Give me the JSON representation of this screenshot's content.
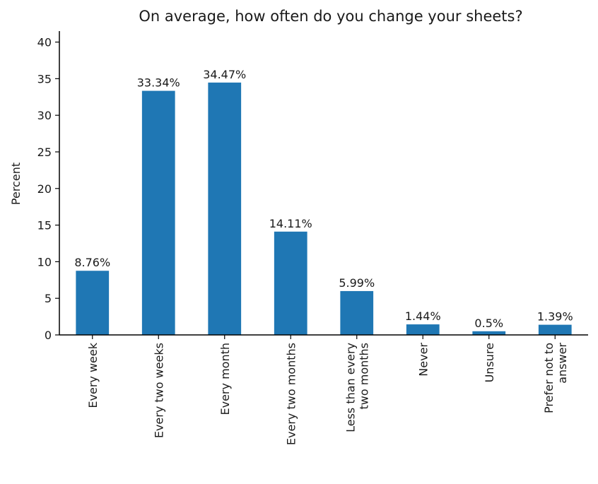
{
  "chart_data": {
    "type": "bar",
    "title": "On average, how often do you change your sheets?",
    "xlabel": "",
    "ylabel": "Percent",
    "ylim": [
      0,
      41.5
    ],
    "yticks": [
      0,
      5,
      10,
      15,
      20,
      25,
      30,
      35,
      40
    ],
    "grid": false,
    "categories": [
      [
        "Every week"
      ],
      [
        "Every two weeks"
      ],
      [
        "Every month"
      ],
      [
        "Every two months"
      ],
      [
        "Less than every",
        "two months"
      ],
      [
        "Never"
      ],
      [
        "Unsure"
      ],
      [
        "Prefer not to",
        "answer"
      ]
    ],
    "values": [
      8.76,
      33.34,
      34.47,
      14.11,
      5.99,
      1.44,
      0.5,
      1.39
    ],
    "value_labels": [
      "8.76%",
      "33.34%",
      "34.47%",
      "14.11%",
      "5.99%",
      "1.44%",
      "0.5%",
      "1.39%"
    ],
    "bar_color": "#1f77b4"
  }
}
